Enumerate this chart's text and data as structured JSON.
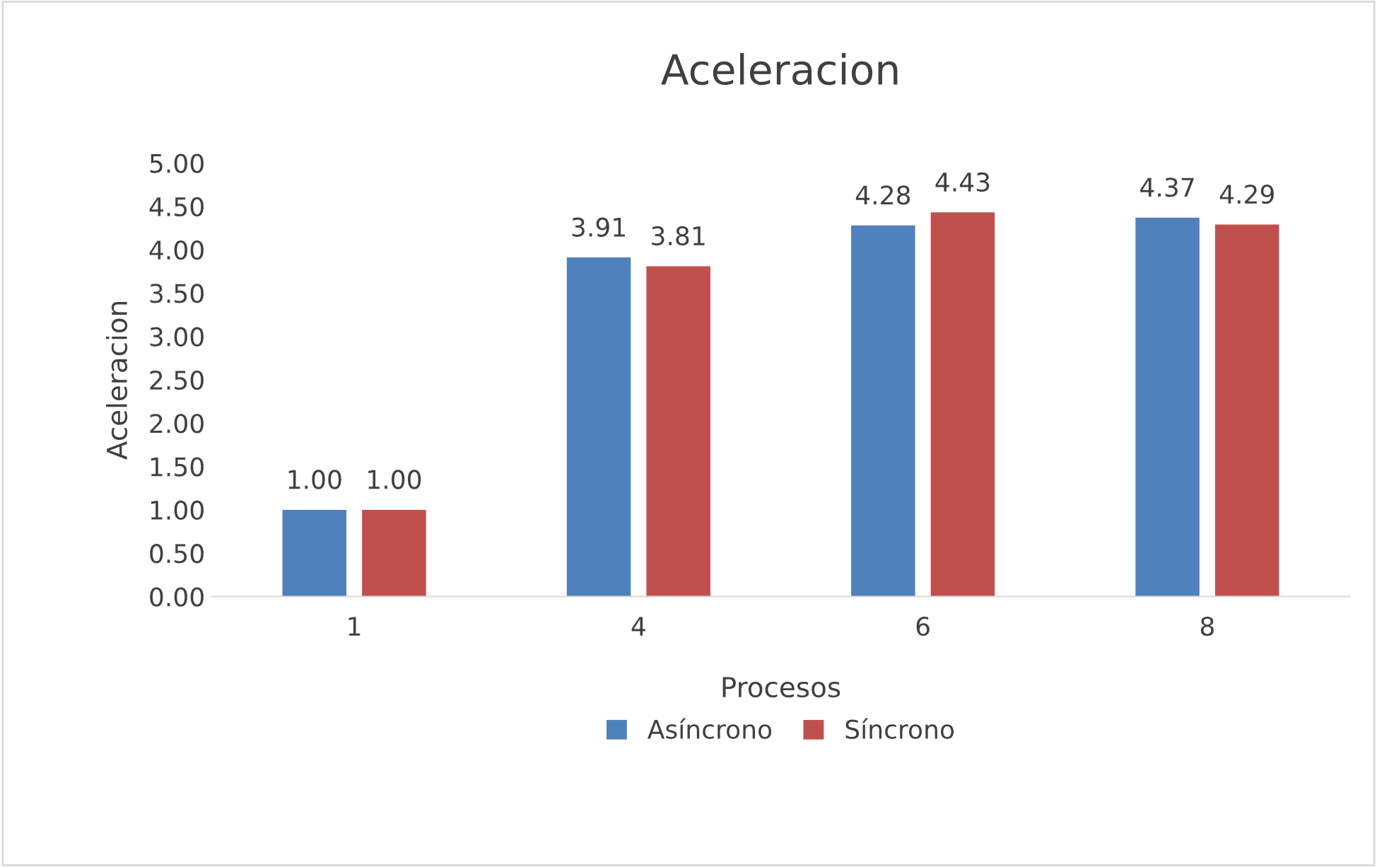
{
  "chart_data": {
    "type": "bar",
    "title": "Aceleracion",
    "xlabel": "Procesos",
    "ylabel": "Aceleracion",
    "categories": [
      "1",
      "4",
      "6",
      "8"
    ],
    "series": [
      {
        "name": "Asíncrono",
        "color": "#4f81bd",
        "values": [
          1.0,
          3.91,
          4.28,
          4.37
        ],
        "value_labels": [
          "1.00",
          "3.91",
          "4.28",
          "4.37"
        ]
      },
      {
        "name": "Síncrono",
        "color": "#c0504d",
        "values": [
          1.0,
          3.81,
          4.43,
          4.29
        ],
        "value_labels": [
          "1.00",
          "3.81",
          "4.43",
          "4.29"
        ]
      }
    ],
    "ylim": [
      0,
      5
    ],
    "yticks": [
      {
        "value": 0,
        "label": "0.00"
      },
      {
        "value": 0.5,
        "label": "0.50"
      },
      {
        "value": 1,
        "label": "1.00"
      },
      {
        "value": 1.5,
        "label": "1.50"
      },
      {
        "value": 2,
        "label": "2.00"
      },
      {
        "value": 2.5,
        "label": "2.50"
      },
      {
        "value": 3,
        "label": "3.00"
      },
      {
        "value": 3.5,
        "label": "3.50"
      },
      {
        "value": 4,
        "label": "4.00"
      },
      {
        "value": 4.5,
        "label": "4.50"
      },
      {
        "value": 5,
        "label": "5.00"
      }
    ],
    "grid": false,
    "legend": "bottom"
  }
}
